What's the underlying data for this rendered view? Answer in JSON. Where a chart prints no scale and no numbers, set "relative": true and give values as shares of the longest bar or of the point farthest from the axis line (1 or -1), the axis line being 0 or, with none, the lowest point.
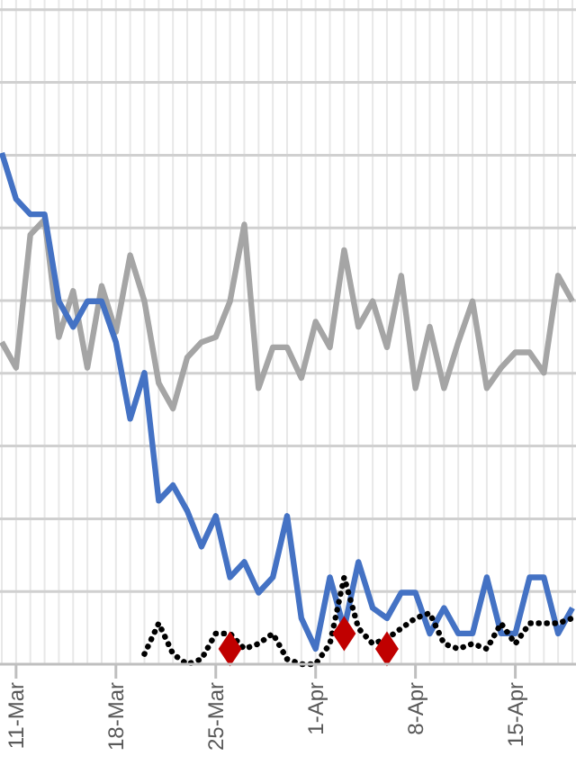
{
  "chart_data": {
    "type": "line",
    "relative": true,
    "grid": true,
    "line_style": "solid",
    "marker": "none",
    "x": [
      "--03-10",
      "--03-11",
      "--03-12",
      "--03-13",
      "--03-14",
      "--03-15",
      "--03-16",
      "--03-17",
      "--03-18",
      "--03-19",
      "--03-20",
      "--03-21",
      "--03-22",
      "--03-23",
      "--03-24",
      "--03-25",
      "--03-26",
      "--03-27",
      "--03-28",
      "--03-29",
      "--03-30",
      "--03-31",
      "--04-01",
      "--04-02",
      "--04-03",
      "--04-04",
      "--04-05",
      "--04-06",
      "--04-07",
      "--04-08",
      "--04-09",
      "--04-10",
      "--04-11",
      "--04-12",
      "--04-13",
      "--04-14",
      "--04-15",
      "--04-16",
      "--04-17",
      "--04-18",
      "--04-19"
    ],
    "xlim": [
      "--03-10",
      "--04-19"
    ],
    "xticks": [
      {
        "value": "--03-11",
        "label": "11-Mar"
      },
      {
        "value": "--03-18",
        "label": "18-Mar"
      },
      {
        "value": "--03-25",
        "label": "25-Mar"
      },
      {
        "value": "--04-01",
        "label": "1-Apr"
      },
      {
        "value": "--04-08",
        "label": "8-Apr"
      },
      {
        "value": "--04-15",
        "label": "15-Apr"
      }
    ],
    "series": [
      {
        "color": "#a5a5a5",
        "values": [
          0.63,
          0.58,
          0.84,
          0.87,
          0.64,
          0.73,
          0.58,
          0.74,
          0.65,
          0.8,
          0.71,
          0.55,
          0.5,
          0.6,
          0.63,
          0.64,
          0.71,
          0.86,
          0.54,
          0.62,
          0.62,
          0.56,
          0.67,
          0.62,
          0.81,
          0.66,
          0.71,
          0.62,
          0.76,
          0.54,
          0.66,
          0.54,
          0.63,
          0.71,
          0.54,
          0.58,
          0.61,
          0.61,
          0.57,
          0.76,
          0.71
        ]
      },
      {
        "color": "#4472c4",
        "values": [
          1.0,
          0.91,
          0.88,
          0.88,
          0.71,
          0.66,
          0.71,
          0.71,
          0.63,
          0.48,
          0.57,
          0.32,
          0.35,
          0.3,
          0.23,
          0.29,
          0.17,
          0.2,
          0.14,
          0.17,
          0.29,
          0.09,
          0.03,
          0.17,
          0.07,
          0.2,
          0.11,
          0.09,
          0.14,
          0.14,
          0.06,
          0.11,
          0.06,
          0.06,
          0.17,
          0.06,
          0.06,
          0.17,
          0.17,
          0.06,
          0.11
        ]
      },
      {
        "color": "#000000",
        "line_style": "dotted",
        "values": [
          null,
          null,
          null,
          null,
          null,
          null,
          null,
          null,
          null,
          null,
          0.02,
          0.08,
          0.02,
          0.0,
          0.01,
          0.06,
          0.06,
          0.03,
          0.04,
          0.06,
          0.01,
          0.0,
          0.0,
          0.04,
          0.17,
          0.07,
          0.04,
          0.05,
          0.07,
          0.09,
          0.1,
          0.04,
          0.03,
          0.04,
          0.03,
          0.08,
          0.04,
          0.08,
          0.08,
          0.08,
          0.09
        ]
      },
      {
        "type": "scatter",
        "marker": "diamond",
        "color": "#c00000",
        "x": [
          "--03-26",
          "--04-03",
          "--04-06"
        ],
        "values": [
          0.03,
          0.06,
          0.03
        ]
      }
    ]
  }
}
